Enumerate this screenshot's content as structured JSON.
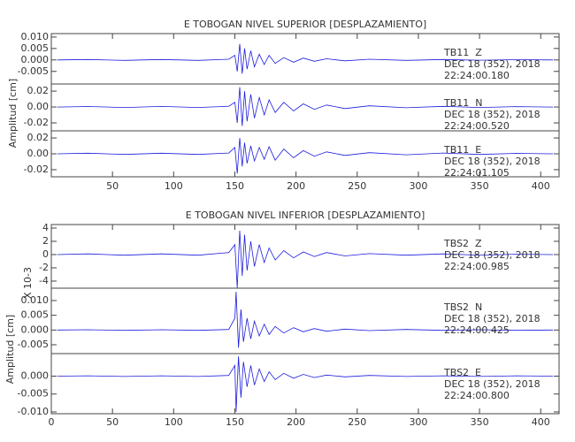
{
  "chart_data": [
    {
      "type": "line",
      "title": "E TOBOGAN NIVEL SUPERIOR [DESPLAZAMIENTO]",
      "y_label": "Amplitud [cm]",
      "xlim": [
        0,
        415
      ],
      "xticks": [
        50,
        100,
        150,
        200,
        250,
        300,
        350,
        400
      ],
      "panels": [
        {
          "annotation": [
            "TB11  Z",
            "DEC 18 (352), 2018",
            "22:24:00.180"
          ],
          "ylim": [
            -0.0105,
            0.0115
          ],
          "yticks": [
            {
              "value": 0.01,
              "label": "0.010"
            },
            {
              "value": 0.005,
              "label": "0.005"
            },
            {
              "value": 0,
              "label": "0.000"
            },
            {
              "value": -0.005,
              "label": "-0.005"
            }
          ],
          "series": [
            {
              "color": "#1c1cdc",
              "x": [
                5,
                30,
                60,
                90,
                120,
                145,
                150,
                152,
                154,
                156,
                158,
                160,
                163,
                166,
                170,
                174,
                178,
                183,
                190,
                198,
                206,
                215,
                225,
                240,
                260,
                290,
                320,
                350,
                380,
                410
              ],
              "values": [
                0,
                0.0002,
                -0.0002,
                0.0002,
                -0.0002,
                0.0003,
                0.002,
                -0.005,
                0.007,
                -0.006,
                0.005,
                -0.004,
                0.004,
                -0.003,
                0.0025,
                -0.002,
                0.002,
                -0.0015,
                0.001,
                -0.001,
                0.0008,
                -0.0006,
                0.0005,
                -0.0004,
                0.0003,
                -0.0002,
                0.0002,
                -0.0001,
                0.0001,
                0
              ]
            }
          ]
        },
        {
          "annotation": [
            "TB11  N",
            "DEC 18 (352), 2018",
            "22:24:00.520"
          ],
          "ylim": [
            -0.03,
            0.029
          ],
          "yticks": [
            {
              "value": 0.02,
              "label": "0.02"
            },
            {
              "value": 0,
              "label": "0.00"
            },
            {
              "value": -0.02,
              "label": "-0.02"
            }
          ],
          "series": [
            {
              "color": "#1c1cdc",
              "x": [
                5,
                30,
                60,
                90,
                120,
                145,
                150,
                152,
                154,
                156,
                158,
                160,
                163,
                166,
                170,
                174,
                178,
                183,
                190,
                198,
                206,
                215,
                225,
                240,
                260,
                290,
                320,
                350,
                380,
                410
              ],
              "values": [
                0,
                0.0006,
                -0.0006,
                0.0007,
                -0.0006,
                0.001,
                0.006,
                -0.02,
                0.025,
                -0.024,
                0.02,
                -0.018,
                0.016,
                -0.014,
                0.012,
                -0.01,
                0.009,
                -0.007,
                0.006,
                -0.005,
                0.004,
                -0.003,
                0.0025,
                -0.002,
                0.0015,
                -0.001,
                0.0008,
                -0.0006,
                0.0005,
                0
              ]
            }
          ]
        },
        {
          "annotation": [
            "TB11  E",
            "DEC 18 (352), 2018",
            "22:24:01.105"
          ],
          "ylim": [
            -0.029,
            0.029
          ],
          "yticks": [
            {
              "value": 0.02,
              "label": "0.02"
            },
            {
              "value": 0,
              "label": "0.00"
            },
            {
              "value": -0.02,
              "label": "-0.02"
            }
          ],
          "series": [
            {
              "color": "#1c1cdc",
              "x": [
                5,
                30,
                60,
                90,
                120,
                145,
                150,
                152,
                154,
                156,
                158,
                160,
                163,
                166,
                170,
                174,
                178,
                183,
                190,
                198,
                206,
                215,
                225,
                240,
                260,
                290,
                320,
                350,
                380,
                410
              ],
              "values": [
                0,
                0.0008,
                -0.0008,
                0.0008,
                -0.0008,
                0.001,
                0.008,
                -0.025,
                0.02,
                -0.016,
                0.014,
                -0.012,
                0.01,
                -0.009,
                0.008,
                -0.007,
                0.009,
                -0.008,
                0.006,
                -0.005,
                0.004,
                -0.003,
                0.0025,
                -0.002,
                0.0015,
                -0.0012,
                0.001,
                -0.0008,
                0.0006,
                0
              ]
            }
          ]
        }
      ]
    },
    {
      "type": "line",
      "title": "E TOBOGAN NIVEL INFERIOR [DESPLAZAMIENTO]",
      "y_label": "Amplitud [cm]",
      "y_scale_label": "X 10-3",
      "xlim": [
        0,
        415
      ],
      "xticks": [
        0,
        50,
        100,
        150,
        200,
        250,
        300,
        350,
        400
      ],
      "panels": [
        {
          "annotation": [
            "TBS2  Z",
            "DEC 18 (352), 2018",
            "22:24:00.985"
          ],
          "ylim": [
            -5.07,
            4.53
          ],
          "yticks": [
            4,
            2,
            0,
            -2,
            -4
          ],
          "series": [
            {
              "color": "#1c1cdc",
              "x": [
                5,
                30,
                60,
                90,
                120,
                145,
                150,
                152,
                154,
                156,
                158,
                160,
                163,
                166,
                170,
                174,
                178,
                183,
                190,
                198,
                206,
                215,
                225,
                240,
                260,
                290,
                320,
                350,
                380,
                410
              ],
              "values": [
                0,
                0.1,
                -0.1,
                0.1,
                -0.1,
                0.3,
                1.5,
                -5,
                3.6,
                -3.2,
                3,
                -2.4,
                2,
                -1.8,
                1.5,
                -1.2,
                1,
                -0.8,
                0.6,
                -0.5,
                0.4,
                -0.3,
                0.3,
                -0.2,
                0.15,
                -0.1,
                0.1,
                -0.08,
                0.05,
                0
              ]
            }
          ]
        },
        {
          "annotation": [
            "TBS2  N",
            "DEC 18 (352), 2018",
            "22:24:00.425"
          ],
          "ylim": [
            -0.008,
            0.0142
          ],
          "yticks": [
            {
              "value": 0.01,
              "label": "0.010"
            },
            {
              "value": 0.005,
              "label": "0.005"
            },
            {
              "value": 0,
              "label": "0.000"
            },
            {
              "value": -0.005,
              "label": "-0.005"
            }
          ],
          "series": [
            {
              "color": "#1c1cdc",
              "x": [
                5,
                30,
                60,
                90,
                120,
                145,
                150,
                151,
                153,
                155,
                157,
                160,
                163,
                166,
                170,
                174,
                178,
                183,
                190,
                198,
                206,
                215,
                225,
                240,
                260,
                290,
                320,
                350,
                380,
                410
              ],
              "values": [
                0,
                0.0001,
                -0.0001,
                0.0001,
                -0.0001,
                0.0002,
                0.004,
                0.013,
                -0.006,
                0.007,
                -0.004,
                0.004,
                -0.003,
                0.003,
                -0.002,
                0.002,
                -0.0015,
                0.0012,
                -0.001,
                0.0008,
                -0.0006,
                0.0005,
                -0.0004,
                0.0003,
                -0.0002,
                0.0002,
                -0.0001,
                0.0001,
                -0.0001,
                0
              ]
            }
          ]
        },
        {
          "annotation": [
            "TBS2  E",
            "DEC 18 (352), 2018",
            "22:24:00.800"
          ],
          "ylim": [
            -0.0105,
            0.0063
          ],
          "yticks": [
            {
              "value": 0,
              "label": "0.000"
            },
            {
              "value": -0.005,
              "label": "-0.005"
            },
            {
              "value": -0.01,
              "label": "-0.010"
            }
          ],
          "series": [
            {
              "color": "#1c1cdc",
              "x": [
                5,
                30,
                60,
                90,
                120,
                145,
                150,
                151,
                153,
                155,
                157,
                160,
                163,
                166,
                170,
                174,
                178,
                183,
                190,
                198,
                206,
                215,
                225,
                240,
                260,
                290,
                320,
                350,
                380,
                410
              ],
              "values": [
                0,
                0.0001,
                -0.0001,
                0.0001,
                -0.0001,
                0.0002,
                0.003,
                -0.01,
                0.0055,
                -0.006,
                0.004,
                -0.003,
                0.003,
                -0.0025,
                0.002,
                -0.0015,
                0.0012,
                -0.001,
                0.0008,
                -0.0006,
                0.0005,
                -0.0004,
                0.0003,
                -0.0002,
                0.0002,
                -0.0001,
                0.0001,
                -0.0001,
                0.0001,
                0
              ]
            }
          ]
        }
      ]
    }
  ]
}
